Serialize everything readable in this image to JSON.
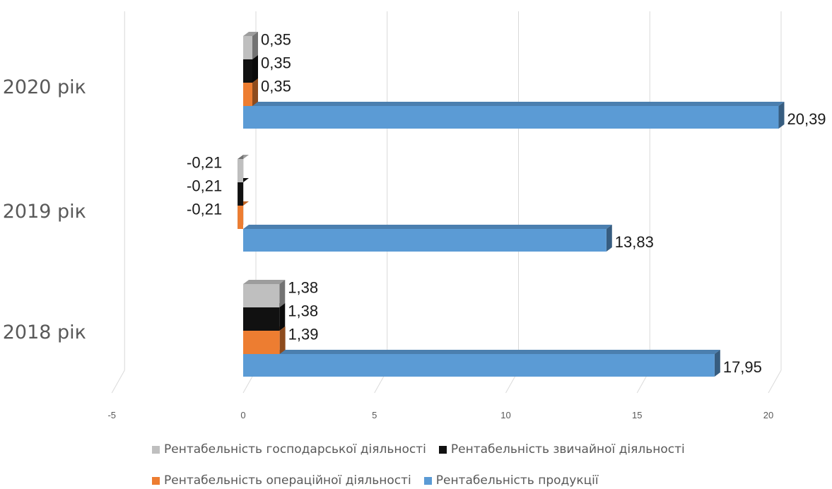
{
  "chart_data": {
    "type": "bar",
    "orientation": "horizontal",
    "style": "3d-clustered",
    "categories": [
      "2018 рік",
      "2019 рік",
      "2020 рік"
    ],
    "series": [
      {
        "name": "Рентабельність продукції",
        "color": "#5B9BD5",
        "values": [
          17.95,
          13.83,
          20.39
        ],
        "labels": [
          "17,95",
          "13,83",
          "20,39"
        ]
      },
      {
        "name": "Рентабельність операційної діяльності",
        "color": "#ED7D31",
        "values": [
          1.39,
          -0.21,
          0.35
        ],
        "labels": [
          "1,39",
          "-0,21",
          "0,35"
        ]
      },
      {
        "name": "Рентабельність звичайної діяльності",
        "color": "#111111",
        "values": [
          1.38,
          -0.21,
          0.35
        ],
        "labels": [
          "1,38",
          "-0,21",
          "0,35"
        ]
      },
      {
        "name": "Рентабельність господарської діяльності",
        "color": "#BFBFBF",
        "values": [
          1.38,
          -0.21,
          0.35
        ],
        "labels": [
          "1,38",
          "-0,21",
          "0,35"
        ]
      }
    ],
    "xlim": [
      -5,
      20
    ],
    "xticks": [
      -5,
      0,
      5,
      10,
      15,
      20
    ],
    "xticklabels": [
      "-5",
      "0",
      "5",
      "10",
      "15",
      "20"
    ],
    "grid": true,
    "legend_position": "bottom"
  },
  "legend": {
    "rows": [
      [
        3,
        2
      ],
      [
        1,
        0
      ]
    ]
  }
}
